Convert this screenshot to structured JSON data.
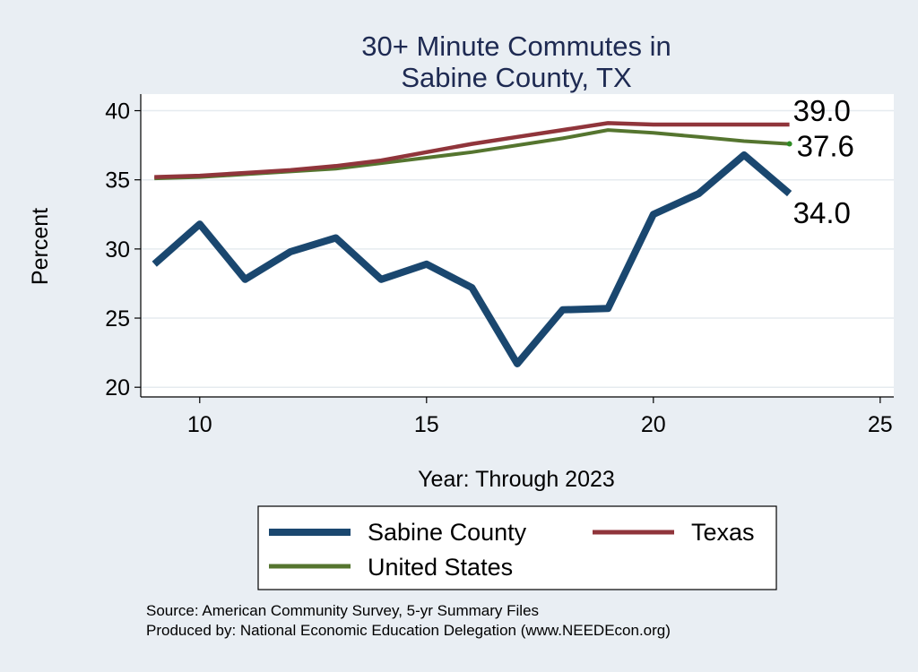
{
  "chart_data": {
    "type": "line",
    "title_lines": [
      "30+ Minute Commutes in",
      "Sabine County, TX"
    ],
    "xlabel": "Year: Through 2023",
    "ylabel": "Percent",
    "xlim": [
      8.7,
      25.3
    ],
    "ylim": [
      19.3,
      41.2
    ],
    "x_ticks": [
      10,
      15,
      20,
      25
    ],
    "y_ticks": [
      20,
      25,
      30,
      35,
      40
    ],
    "grid": true,
    "legend_position": "bottom",
    "x": [
      9,
      10,
      11,
      12,
      13,
      14,
      15,
      16,
      17,
      18,
      19,
      20,
      21,
      22,
      23
    ],
    "series": [
      {
        "name": "Sabine County",
        "color": "#1a476f",
        "values": [
          28.9,
          31.8,
          27.8,
          29.8,
          30.8,
          27.8,
          28.9,
          27.2,
          21.7,
          25.6,
          25.7,
          32.5,
          34.0,
          36.8,
          34.0
        ],
        "end_label": "34.0"
      },
      {
        "name": "Texas",
        "color": "#90353b",
        "values": [
          35.2,
          35.3,
          35.5,
          35.7,
          36.0,
          36.4,
          37.0,
          37.6,
          38.1,
          38.6,
          39.1,
          39.0,
          39.0,
          39.0,
          39.0
        ],
        "end_label": "39.0"
      },
      {
        "name": "United States",
        "color": "#55752f",
        "values": [
          35.1,
          35.2,
          35.4,
          35.6,
          35.8,
          36.2,
          36.6,
          37.0,
          37.5,
          38.0,
          38.6,
          38.4,
          38.1,
          37.8,
          37.6
        ],
        "end_label": "37.6"
      }
    ],
    "legend_entries": [
      "Sabine County",
      "Texas",
      "United States"
    ],
    "source_note": "Source: American Community Survey, 5-yr Summary Files",
    "producer_note": "Produced by: National Economic Education Delegation (www.NEEDEcon.org)"
  }
}
